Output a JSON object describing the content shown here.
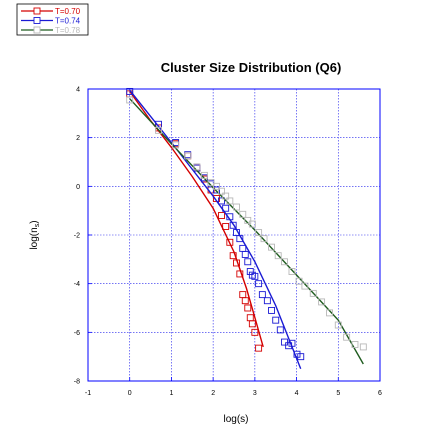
{
  "chart_data": {
    "type": "scatter",
    "title": "Cluster Size Distribution (Q6)",
    "xlabel": "log(s)",
    "ylabel": "log(n",
    "ylabel_sub": "s",
    "ylabel_close": ")",
    "xlim": [
      -1,
      6
    ],
    "ylim": [
      -8,
      4
    ],
    "x_ticks": [
      -1,
      0,
      1,
      2,
      3,
      4,
      5,
      6
    ],
    "y_ticks": [
      -8,
      -6,
      -4,
      -2,
      0,
      2,
      4
    ],
    "grid": true,
    "legend_position": "top-left-outside",
    "series": [
      {
        "name": "T=0.70",
        "color": "#d40000",
        "marker": "square",
        "points": [
          [
            0.0,
            3.8
          ],
          [
            0.69,
            2.4
          ],
          [
            1.1,
            1.75
          ],
          [
            1.39,
            1.25
          ],
          [
            1.61,
            0.75
          ],
          [
            1.79,
            0.3
          ],
          [
            1.95,
            -0.15
          ],
          [
            2.08,
            -0.5
          ],
          [
            2.2,
            -1.2
          ],
          [
            2.3,
            -1.65
          ],
          [
            2.4,
            -2.3
          ],
          [
            2.48,
            -2.85
          ],
          [
            2.56,
            -3.15
          ],
          [
            2.64,
            -3.6
          ],
          [
            2.71,
            -4.45
          ],
          [
            2.77,
            -4.7
          ],
          [
            2.83,
            -5.0
          ],
          [
            2.89,
            -5.4
          ],
          [
            2.94,
            -5.65
          ],
          [
            3.0,
            -6.0
          ],
          [
            3.09,
            -6.65
          ]
        ],
        "fit": [
          [
            0.0,
            3.9
          ],
          [
            0.5,
            2.7
          ],
          [
            1.0,
            1.6
          ],
          [
            1.5,
            0.4
          ],
          [
            2.0,
            -0.9
          ],
          [
            2.5,
            -2.7
          ],
          [
            2.8,
            -4.2
          ],
          [
            3.0,
            -5.4
          ],
          [
            3.2,
            -6.6
          ]
        ]
      },
      {
        "name": "T=0.74",
        "color": "#1a1ad4",
        "marker": "square",
        "points": [
          [
            0.0,
            3.9
          ],
          [
            0.69,
            2.55
          ],
          [
            1.1,
            1.8
          ],
          [
            1.39,
            1.3
          ],
          [
            1.61,
            0.75
          ],
          [
            1.79,
            0.35
          ],
          [
            1.95,
            0.1
          ],
          [
            2.08,
            -0.15
          ],
          [
            2.2,
            -0.6
          ],
          [
            2.3,
            -0.9
          ],
          [
            2.4,
            -1.25
          ],
          [
            2.48,
            -1.6
          ],
          [
            2.56,
            -1.9
          ],
          [
            2.64,
            -2.15
          ],
          [
            2.71,
            -2.55
          ],
          [
            2.77,
            -2.8
          ],
          [
            2.83,
            -3.1
          ],
          [
            2.89,
            -3.5
          ],
          [
            2.94,
            -3.65
          ],
          [
            3.0,
            -3.7
          ],
          [
            3.09,
            -4.0
          ],
          [
            3.18,
            -4.45
          ],
          [
            3.3,
            -4.7
          ],
          [
            3.4,
            -5.1
          ],
          [
            3.5,
            -5.5
          ],
          [
            3.61,
            -5.9
          ],
          [
            3.71,
            -6.4
          ],
          [
            3.81,
            -6.55
          ],
          [
            3.89,
            -6.45
          ],
          [
            4.01,
            -6.9
          ],
          [
            4.1,
            -7.0
          ]
        ],
        "fit": [
          [
            0.0,
            3.95
          ],
          [
            1.0,
            1.8
          ],
          [
            2.0,
            -0.4
          ],
          [
            2.5,
            -1.6
          ],
          [
            3.0,
            -3.1
          ],
          [
            3.5,
            -4.9
          ],
          [
            4.1,
            -7.5
          ]
        ]
      },
      {
        "name": "T=0.78",
        "color": "#b8b8b8",
        "line_color": "#1f5c1f",
        "marker": "square",
        "points": [
          [
            0.0,
            3.55
          ],
          [
            0.69,
            2.3
          ],
          [
            1.1,
            1.7
          ],
          [
            1.39,
            1.25
          ],
          [
            1.61,
            0.8
          ],
          [
            1.79,
            0.45
          ],
          [
            1.95,
            0.15
          ],
          [
            2.08,
            0.0
          ],
          [
            2.2,
            -0.2
          ],
          [
            2.3,
            -0.4
          ],
          [
            2.4,
            -0.6
          ],
          [
            2.56,
            -0.85
          ],
          [
            2.71,
            -1.15
          ],
          [
            2.83,
            -1.4
          ],
          [
            2.94,
            -1.55
          ],
          [
            3.09,
            -1.9
          ],
          [
            3.22,
            -2.15
          ],
          [
            3.4,
            -2.5
          ],
          [
            3.56,
            -2.85
          ],
          [
            3.71,
            -3.1
          ],
          [
            3.89,
            -3.5
          ],
          [
            4.06,
            -3.9
          ],
          [
            4.2,
            -4.1
          ],
          [
            4.4,
            -4.4
          ],
          [
            4.6,
            -4.75
          ],
          [
            4.79,
            -5.2
          ],
          [
            5.0,
            -5.7
          ],
          [
            5.2,
            -6.2
          ],
          [
            5.4,
            -6.5
          ],
          [
            5.6,
            -6.6
          ]
        ],
        "fit": [
          [
            0.0,
            3.6
          ],
          [
            1.0,
            1.75
          ],
          [
            2.0,
            -0.05
          ],
          [
            3.0,
            -1.8
          ],
          [
            4.0,
            -3.65
          ],
          [
            5.0,
            -5.5
          ],
          [
            5.6,
            -7.3
          ]
        ]
      }
    ]
  }
}
